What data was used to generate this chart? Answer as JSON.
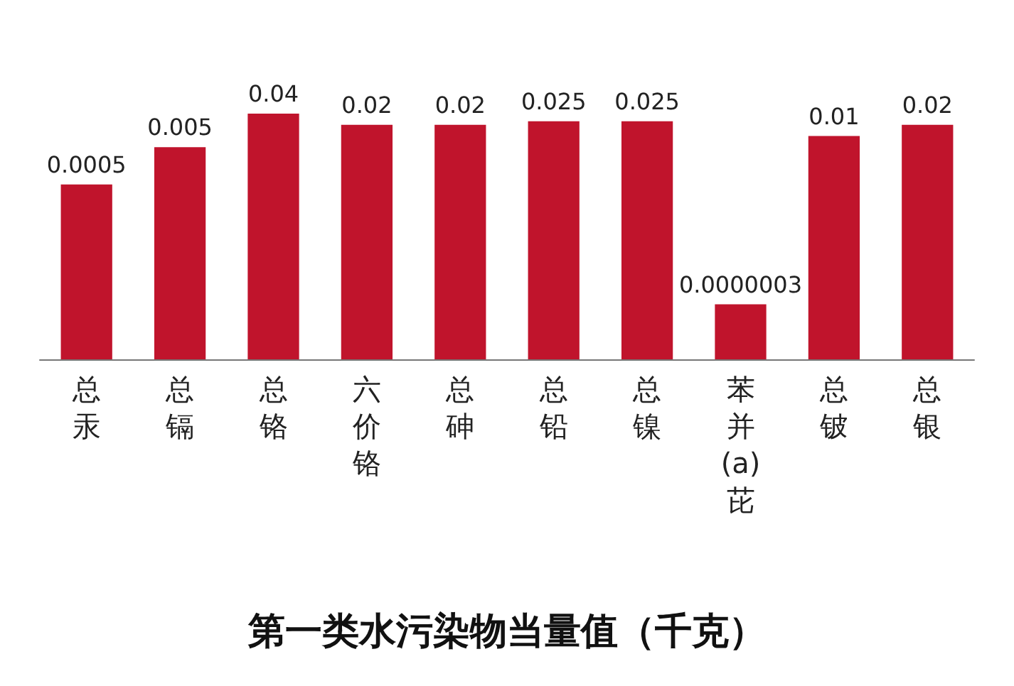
{
  "chart_data": {
    "type": "bar",
    "title": "第一类水污染物当量值（千克）",
    "categories": [
      "总汞",
      "总镉",
      "总铬",
      "六价铬",
      "总砷",
      "总铅",
      "总镍",
      "苯并(a)芘",
      "总铍",
      "总银"
    ],
    "values": [
      0.0005,
      0.005,
      0.04,
      0.02,
      0.02,
      0.025,
      0.025,
      3e-07,
      0.01,
      0.02
    ],
    "value_labels": [
      "0.0005",
      "0.005",
      "0.04",
      "0.02",
      "0.02",
      "0.025",
      "0.025",
      "0.0000003",
      "0.01",
      "0.02"
    ],
    "color": "#c0142c",
    "log": true,
    "ylim": [
      1e-08,
      0.04
    ],
    "tick_labels": "x",
    "grid": false
  }
}
